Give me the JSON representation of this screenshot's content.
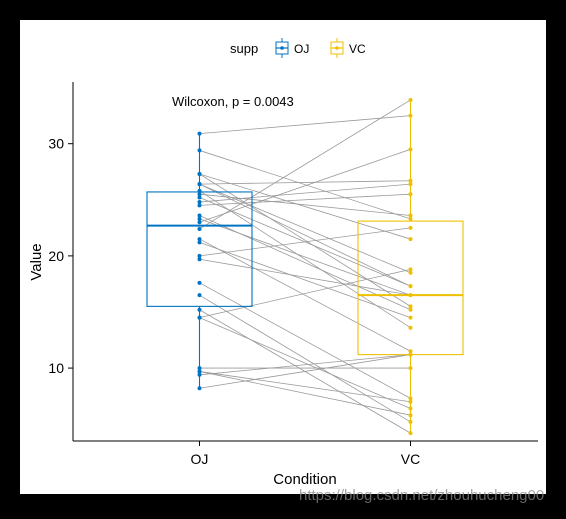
{
  "chart_data": {
    "type": "boxplot-paired",
    "title": "",
    "xlabel": "Condition",
    "ylabel": "Value",
    "categories": [
      "OJ",
      "VC"
    ],
    "ylim": [
      3.5,
      35.5
    ],
    "yticks": [
      10,
      20,
      30
    ],
    "legend": {
      "title": "supp",
      "position": "top",
      "entries": [
        {
          "name": "OJ",
          "color": "#0073C2"
        },
        {
          "name": "VC",
          "color": "#EFC000"
        }
      ]
    },
    "annotation": "Wilcoxon, p = 0.0043",
    "grid": false,
    "box_stats": [
      {
        "group": "OJ",
        "q1": 15.5,
        "median": 22.7,
        "q3": 25.7,
        "whisker_low": 8.2,
        "whisker_high": 30.9
      },
      {
        "group": "VC",
        "q1": 11.2,
        "median": 16.5,
        "q3": 23.1,
        "whisker_low": 4.2,
        "whisker_high": 33.9
      }
    ],
    "pairs": [
      {
        "oj": 15.2,
        "vc": 4.2
      },
      {
        "oj": 21.5,
        "vc": 11.5
      },
      {
        "oj": 17.6,
        "vc": 7.3
      },
      {
        "oj": 9.7,
        "vc": 5.8
      },
      {
        "oj": 14.5,
        "vc": 6.4
      },
      {
        "oj": 10.0,
        "vc": 10.0
      },
      {
        "oj": 8.2,
        "vc": 11.2
      },
      {
        "oj": 9.4,
        "vc": 11.2
      },
      {
        "oj": 16.5,
        "vc": 5.2
      },
      {
        "oj": 9.7,
        "vc": 7.0
      },
      {
        "oj": 19.7,
        "vc": 16.5
      },
      {
        "oj": 23.3,
        "vc": 16.5
      },
      {
        "oj": 23.6,
        "vc": 15.2
      },
      {
        "oj": 26.4,
        "vc": 17.3
      },
      {
        "oj": 20.0,
        "vc": 22.5
      },
      {
        "oj": 25.2,
        "vc": 17.3
      },
      {
        "oj": 25.8,
        "vc": 13.6
      },
      {
        "oj": 21.2,
        "vc": 14.5
      },
      {
        "oj": 14.5,
        "vc": 18.8
      },
      {
        "oj": 27.3,
        "vc": 15.5
      },
      {
        "oj": 25.5,
        "vc": 23.6
      },
      {
        "oj": 26.4,
        "vc": 18.5
      },
      {
        "oj": 22.4,
        "vc": 33.9
      },
      {
        "oj": 24.5,
        "vc": 25.5
      },
      {
        "oj": 24.8,
        "vc": 26.4
      },
      {
        "oj": 30.9,
        "vc": 32.5
      },
      {
        "oj": 26.4,
        "vc": 26.7
      },
      {
        "oj": 27.3,
        "vc": 21.5
      },
      {
        "oj": 29.4,
        "vc": 23.3
      },
      {
        "oj": 23.0,
        "vc": 29.5
      }
    ]
  },
  "watermark": "https://blog.csdn.net/zhouhucheng00"
}
